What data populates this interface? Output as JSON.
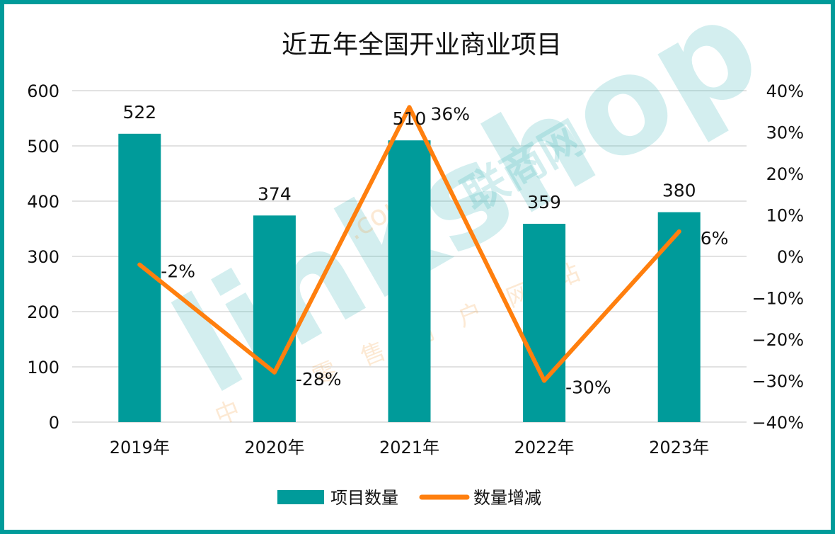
{
  "colors": {
    "border": "#009B9A",
    "bar": "#009B9A",
    "line": "#FF7F0E",
    "grid": "#D9D9D9"
  },
  "watermark": {
    "brand": "linkshop",
    "domain": ".com",
    "cn_name": "联商网",
    "slogan": "中国零售门户网站"
  },
  "chart_data": {
    "type": "bar",
    "title": "近五年全国开业商业项目",
    "categories": [
      "2019年",
      "2020年",
      "2021年",
      "2022年",
      "2023年"
    ],
    "series": [
      {
        "name": "项目数量",
        "type": "bar",
        "axis": "left",
        "values": [
          522,
          374,
          510,
          359,
          380
        ],
        "labels": [
          "522",
          "374",
          "510",
          "359",
          "380"
        ]
      },
      {
        "name": "数量增减",
        "type": "line",
        "axis": "right",
        "values": [
          -2,
          -28,
          36,
          -30,
          6
        ],
        "labels": [
          "-2%",
          "-28%",
          "36%",
          "-30%",
          "6%"
        ]
      }
    ],
    "left_axis": {
      "ylim": [
        0,
        600
      ],
      "ticks": [
        "0",
        "100",
        "200",
        "300",
        "400",
        "500",
        "600"
      ]
    },
    "right_axis": {
      "ylim": [
        -40,
        40
      ],
      "ticks": [
        "-40%",
        "-30%",
        "-20%",
        "-10%",
        "0%",
        "10%",
        "20%",
        "30%",
        "40%"
      ]
    },
    "grid": true,
    "legend": {
      "position": "bottom",
      "entries": [
        "项目数量",
        "数量增减"
      ]
    }
  }
}
